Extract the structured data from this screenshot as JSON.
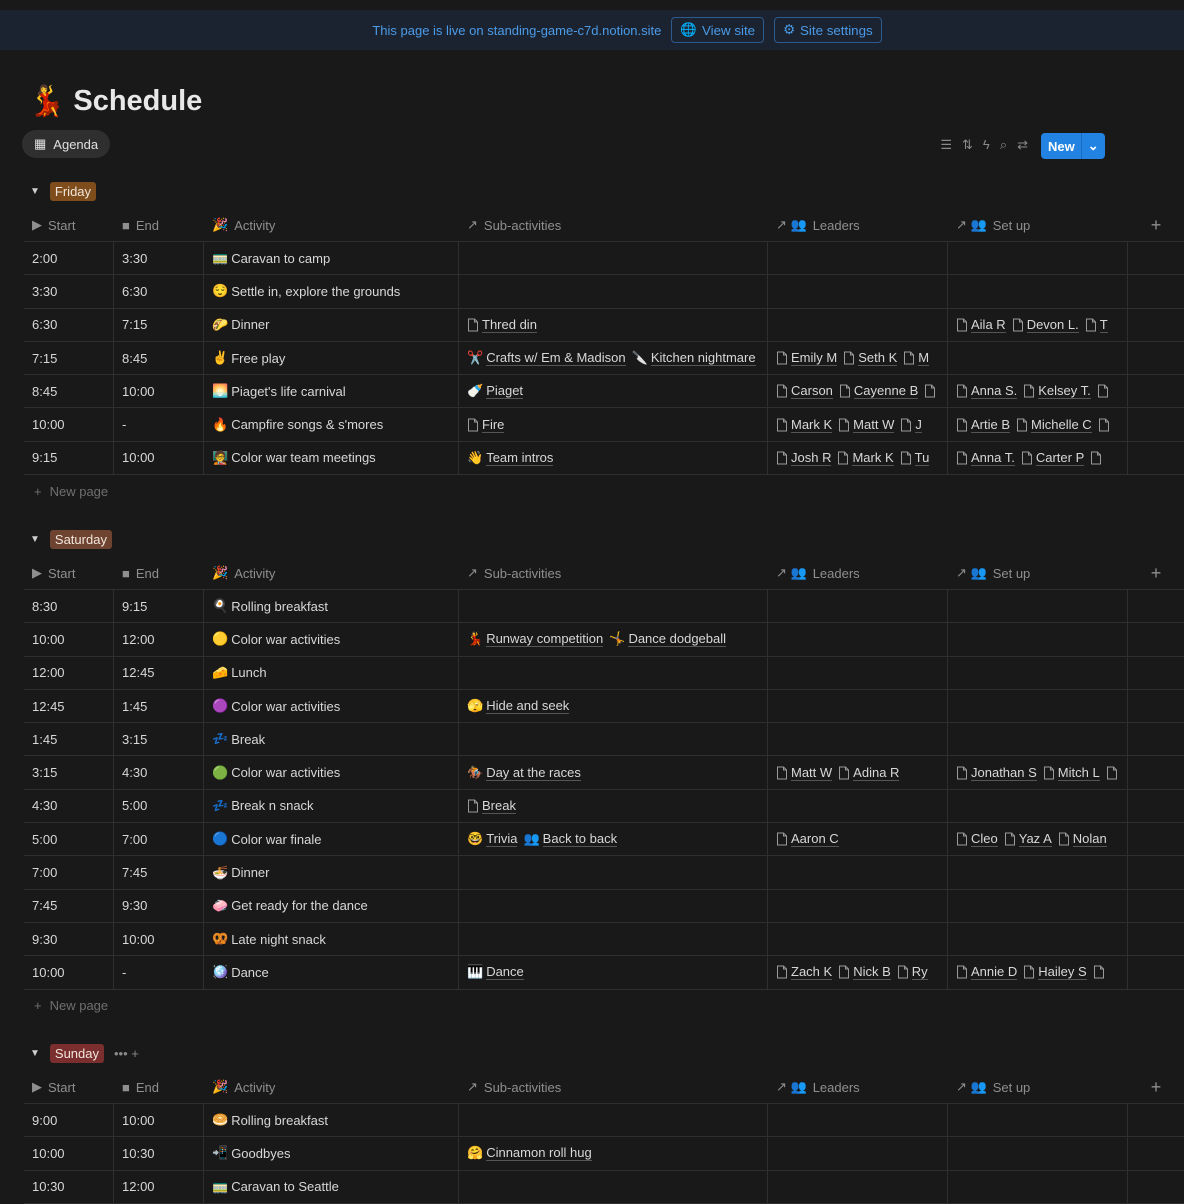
{
  "banner": {
    "message": "This page is live on standing-game-c7d.notion.site",
    "view_site": "View site",
    "site_settings": "Site settings"
  },
  "page": {
    "icon": "💃",
    "title": "Schedule"
  },
  "view": {
    "tab_label": "Agenda",
    "new_label": "New",
    "tool_icons": [
      "filter-icon",
      "sort-icon",
      "automation-icon",
      "search-icon",
      "settings-icon"
    ]
  },
  "columns": [
    {
      "icon": "▶",
      "label": "Start"
    },
    {
      "icon": "■",
      "label": "End"
    },
    {
      "icon": "🎉",
      "label": "Activity"
    },
    {
      "icon": "↗",
      "label": "Sub-activities"
    },
    {
      "icon": "↗ 👥",
      "label": "Leaders"
    },
    {
      "icon": "↗ 👥",
      "label": "Set up"
    }
  ],
  "new_page_label": "New page",
  "groups": [
    {
      "name": "Friday",
      "color": "#7f4d1b",
      "rows": [
        {
          "start": "2:00",
          "end": "3:30",
          "icon": "🚃",
          "activity": "Caravan to camp",
          "subs": [],
          "leaders": [],
          "setup": []
        },
        {
          "start": "3:30",
          "end": "6:30",
          "icon": "😌",
          "activity": "Settle in, explore the grounds",
          "subs": [],
          "leaders": [],
          "setup": []
        },
        {
          "start": "6:30",
          "end": "7:15",
          "icon": "🌮",
          "activity": "Dinner",
          "subs": [
            {
              "icon": "page",
              "text": "Thred din"
            }
          ],
          "leaders": [],
          "setup": [
            "Aila R",
            "Devon L.",
            "T"
          ]
        },
        {
          "start": "7:15",
          "end": "8:45",
          "icon": "✌️",
          "activity": "Free play",
          "subs": [
            {
              "icon": "✂️",
              "text": "Crafts w/ Em & Madison"
            },
            {
              "icon": "🔪",
              "text": "Kitchen nightmare"
            }
          ],
          "leaders": [
            "Emily M",
            "Seth K",
            "M"
          ],
          "setup": []
        },
        {
          "start": "8:45",
          "end": "10:00",
          "icon": "🌅",
          "activity": "Piaget's life carnival",
          "subs": [
            {
              "icon": "🍼",
              "text": "Piaget"
            }
          ],
          "leaders": [
            "Carson",
            "Cayenne B",
            ""
          ],
          "setup": [
            "Anna S.",
            "Kelsey T.",
            ""
          ]
        },
        {
          "start": "10:00",
          "end": "-",
          "icon": "🔥",
          "activity": "Campfire songs & s'mores",
          "subs": [
            {
              "icon": "page",
              "text": "Fire"
            }
          ],
          "leaders": [
            "Mark K",
            "Matt W",
            "J"
          ],
          "setup": [
            "Artie B",
            "Michelle C",
            ""
          ]
        },
        {
          "start": "9:15",
          "end": "10:00",
          "icon": "🧑‍🏫",
          "activity": "Color war team meetings",
          "subs": [
            {
              "icon": "👋",
              "text": "Team intros"
            }
          ],
          "leaders": [
            "Josh R",
            "Mark K",
            "Tu"
          ],
          "setup": [
            "Anna T.",
            "Carter P",
            ""
          ]
        }
      ]
    },
    {
      "name": "Saturday",
      "color": "#6e4330",
      "rows": [
        {
          "start": "8:30",
          "end": "9:15",
          "icon": "🍳",
          "activity": "Rolling breakfast",
          "subs": [],
          "leaders": [],
          "setup": []
        },
        {
          "start": "10:00",
          "end": "12:00",
          "icon": "🟡",
          "activity": "Color war activities",
          "subs": [
            {
              "icon": "💃",
              "text": "Runway competition"
            },
            {
              "icon": "🤸",
              "text": "Dance dodgeball"
            }
          ],
          "leaders": [],
          "setup": []
        },
        {
          "start": "12:00",
          "end": "12:45",
          "icon": "🧀",
          "activity": "Lunch",
          "subs": [],
          "leaders": [],
          "setup": []
        },
        {
          "start": "12:45",
          "end": "1:45",
          "icon": "🟣",
          "activity": "Color war activities",
          "subs": [
            {
              "icon": "🫣",
              "text": "Hide and seek"
            }
          ],
          "leaders": [],
          "setup": []
        },
        {
          "start": "1:45",
          "end": "3:15",
          "icon": "💤",
          "activity": "Break",
          "subs": [],
          "leaders": [],
          "setup": []
        },
        {
          "start": "3:15",
          "end": "4:30",
          "icon": "🟢",
          "activity": "Color war activities",
          "subs": [
            {
              "icon": "🏇",
              "text": "Day at the races"
            }
          ],
          "leaders": [
            "Matt W",
            "Adina R"
          ],
          "setup": [
            "Jonathan S",
            "Mitch L",
            ""
          ]
        },
        {
          "start": "4:30",
          "end": "5:00",
          "icon": "💤",
          "activity": "Break n snack",
          "subs": [
            {
              "icon": "page",
              "text": "Break"
            }
          ],
          "leaders": [],
          "setup": []
        },
        {
          "start": "5:00",
          "end": "7:00",
          "icon": "🔵",
          "activity": "Color war finale",
          "subs": [
            {
              "icon": "🤓",
              "text": "Trivia"
            },
            {
              "icon": "👥",
              "text": "Back to back"
            }
          ],
          "leaders": [
            "Aaron C"
          ],
          "setup": [
            "Cleo",
            "Yaz A",
            "Nolan"
          ]
        },
        {
          "start": "7:00",
          "end": "7:45",
          "icon": "🍜",
          "activity": "Dinner",
          "subs": [],
          "leaders": [],
          "setup": []
        },
        {
          "start": "7:45",
          "end": "9:30",
          "icon": "🧼",
          "activity": "Get ready for the dance",
          "subs": [],
          "leaders": [],
          "setup": []
        },
        {
          "start": "9:30",
          "end": "10:00",
          "icon": "🥨",
          "activity": "Late night snack",
          "subs": [],
          "leaders": [],
          "setup": []
        },
        {
          "start": "10:00",
          "end": "-",
          "icon": "🪩",
          "activity": "Dance",
          "subs": [
            {
              "icon": "🎹",
              "text": "Dance"
            }
          ],
          "leaders": [
            "Zach K",
            "Nick B",
            "Ry"
          ],
          "setup": [
            "Annie D",
            "Hailey S",
            ""
          ]
        }
      ]
    },
    {
      "name": "Sunday",
      "color": "#7a2e2e",
      "extra": "••• +",
      "rows": [
        {
          "start": "9:00",
          "end": "10:00",
          "icon": "🥯",
          "activity": "Rolling breakfast",
          "subs": [],
          "leaders": [],
          "setup": []
        },
        {
          "start": "10:00",
          "end": "10:30",
          "icon": "📲",
          "activity": "Goodbyes",
          "subs": [
            {
              "icon": "🤗",
              "text": "Cinnamon roll hug"
            }
          ],
          "leaders": [],
          "setup": []
        },
        {
          "start": "10:30",
          "end": "12:00",
          "icon": "🚃",
          "activity": "Caravan to Seattle",
          "subs": [],
          "leaders": [],
          "setup": []
        }
      ]
    }
  ]
}
